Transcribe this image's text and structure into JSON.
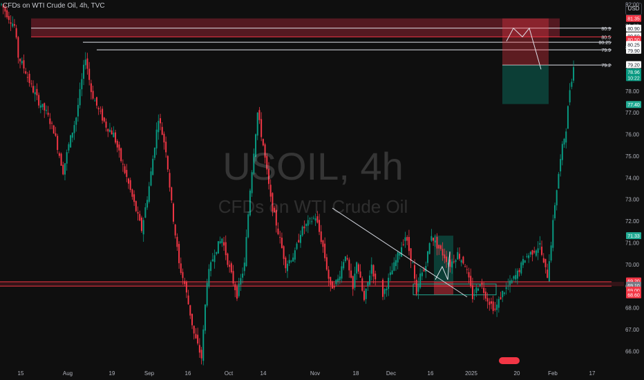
{
  "header": {
    "title": "CFDs on WTI Crude Oil, 4h, TVC"
  },
  "currency_button": {
    "label": "USD"
  },
  "watermark": {
    "symbol": "USOIL, 4h",
    "name": "CFDs on WTI Crude Oil"
  },
  "chart_data": {
    "type": "candlestick",
    "title": "CFDs on WTI Crude Oil, 4h, TVC",
    "xlabel": "",
    "ylabel": "",
    "ylim": [
      65.5,
      82.2
    ],
    "y_ticks": [
      66,
      67,
      68,
      69,
      70,
      71,
      72,
      73,
      74,
      75,
      76,
      77,
      78,
      79,
      80,
      81,
      82
    ],
    "x_ticks": [
      "15",
      "Aug",
      "19",
      "Sep",
      "16",
      "Oct",
      "14",
      "Nov",
      "18",
      "Dec",
      "16",
      "2025",
      "20",
      "Feb",
      "17"
    ],
    "price_series": {
      "name": "USOIL 4h",
      "x_index": [
        0,
        4,
        7,
        9,
        13,
        16,
        20,
        24,
        28,
        33,
        36,
        40,
        45,
        48,
        52,
        56,
        60,
        64,
        67,
        71,
        75,
        79,
        84,
        88,
        91,
        95,
        98,
        103,
        107,
        110,
        114,
        118,
        122,
        126,
        130,
        133,
        137,
        140,
        144,
        148,
        152,
        157,
        160,
        164,
        168,
        172,
        176,
        180,
        184,
        188,
        190,
        194,
        198,
        200
      ],
      "close": [
        82.0,
        81.4,
        81.0,
        79.6,
        78.9,
        78.2,
        77.5,
        77.0,
        76.2,
        74.3,
        75.5,
        76.8,
        79.6,
        78.0,
        77.1,
        76.4,
        76.0,
        74.8,
        74.0,
        72.8,
        71.6,
        73.6,
        76.8,
        75.3,
        72.8,
        70.0,
        69.1,
        66.8,
        65.7,
        69.3,
        70.6,
        71.2,
        69.8,
        68.6,
        70.0,
        73.5,
        77.0,
        75.5,
        73.0,
        71.5,
        70.0,
        70.5,
        71.5,
        71.9,
        72.2,
        70.8,
        68.9,
        69.3,
        70.5,
        68.8,
        70.2,
        68.3,
        70.0,
        69.2
      ]
    },
    "price_series_2": {
      "x_index": [
        204,
        208,
        212,
        216,
        220,
        222,
        224,
        226,
        228,
        230,
        232,
        236,
        240,
        244,
        248,
        252,
        256,
        260,
        264,
        268,
        272,
        276,
        280,
        284,
        288,
        290,
        292,
        294,
        296,
        298,
        300,
        302,
        304,
        306
      ],
      "close": [
        68.6,
        69.5,
        70.4,
        71.3,
        70.0,
        68.5,
        69.5,
        69.7,
        70.5,
        71.4,
        71.0,
        70.5,
        70.0,
        70.5,
        70.0,
        68.5,
        69.2,
        68.4,
        67.9,
        68.7,
        69.1,
        69.6,
        70.3,
        70.6,
        70.9,
        70.0,
        69.5,
        71.0,
        72.8,
        74.2,
        75.4,
        76.3,
        78.1,
        79.1
      ]
    },
    "candle_total": 330,
    "horizontal_levels": [
      80.9,
      80.5,
      80.25,
      79.9,
      79.2,
      69.2,
      69.0
    ],
    "level_labels": [
      "80.9",
      "80.5",
      "80.25",
      "79.9",
      "79.2"
    ],
    "zones": [
      {
        "name": "supply",
        "from": 80.5,
        "to": 81.35,
        "color": "#7a1f2b"
      },
      {
        "name": "demand",
        "from": 69.0,
        "to": 69.2,
        "color": "#7a1f2b"
      }
    ],
    "short_position": {
      "entry": 79.2,
      "target": 77.4,
      "stop": 81.35
    },
    "long_position": {
      "entry": 69.2,
      "target": 71.33,
      "stop": 68.6
    },
    "trendline": {
      "from": [
        171,
        72.6
      ],
      "to": [
        252,
        68.5
      ]
    },
    "price_tags": [
      {
        "label": "81.35",
        "value": 81.35,
        "bg": "#f23645",
        "fg": "#ffffff"
      },
      {
        "label": "80.90",
        "value": 80.9,
        "bg": "#ffffff",
        "fg": "#131722"
      },
      {
        "label": "80.50",
        "value": 80.55,
        "bg": "#ffffff",
        "fg": "#131722"
      },
      {
        "label": "80.50",
        "value": 80.38,
        "bg": "#f23645",
        "fg": "#ffffff"
      },
      {
        "label": "80.25",
        "value": 80.15,
        "bg": "#ffffff",
        "fg": "#131722"
      },
      {
        "label": "79.90",
        "value": 79.88,
        "bg": "#ffffff",
        "fg": "#131722"
      },
      {
        "label": "79.20",
        "value": 79.22,
        "bg": "#ffffff",
        "fg": "#131722"
      },
      {
        "label": "78.96",
        "value": 78.88,
        "bg": "#089981",
        "fg": "#ffffff"
      },
      {
        "label": "10:22",
        "value": 78.62,
        "bg": "#089981",
        "fg": "#ffffff"
      },
      {
        "label": "77.40",
        "value": 77.38,
        "bg": "#22ab94",
        "fg": "#ffffff"
      },
      {
        "label": "71.33",
        "value": 71.33,
        "bg": "#22ab94",
        "fg": "#ffffff"
      },
      {
        "label": "69.20",
        "value": 69.24,
        "bg": "#f23645",
        "fg": "#ffffff"
      },
      {
        "label": "69.10",
        "value": 69.04,
        "bg": "#787b86",
        "fg": "#ffffff"
      },
      {
        "label": "69.00",
        "value": 68.82,
        "bg": "#f23645",
        "fg": "#ffffff"
      },
      {
        "label": "68.60",
        "value": 68.6,
        "bg": "#f23645",
        "fg": "#ffffff"
      }
    ],
    "colors": {
      "up": "#089981",
      "down": "#f23645",
      "background": "#0f0f0f"
    }
  }
}
